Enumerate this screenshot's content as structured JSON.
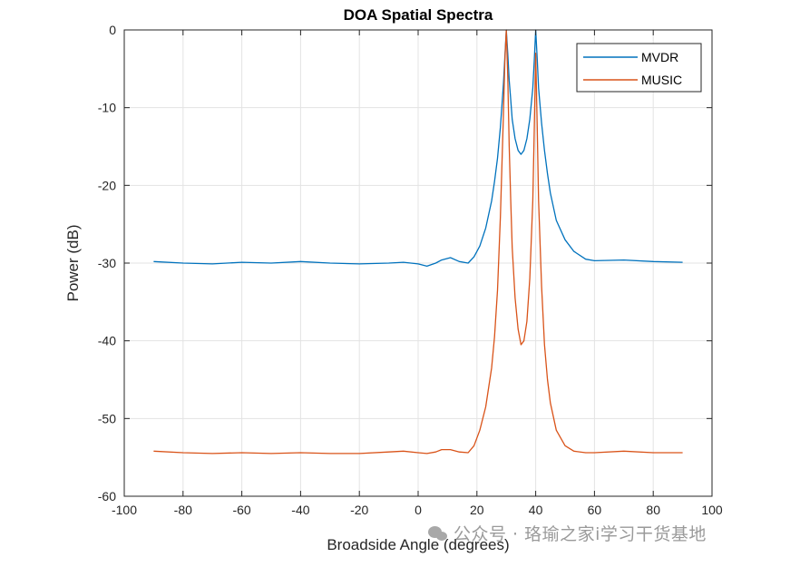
{
  "chart_data": {
    "type": "line",
    "title": "DOA Spatial Spectra",
    "xlabel": "Broadside Angle (degrees)",
    "ylabel": "Power (dB)",
    "xlim": [
      -100,
      100
    ],
    "ylim": [
      -60,
      0
    ],
    "xticks": [
      -100,
      -80,
      -60,
      -40,
      -20,
      0,
      20,
      40,
      60,
      80,
      100
    ],
    "yticks": [
      0,
      -10,
      -20,
      -30,
      -40,
      -50,
      -60
    ],
    "grid": true,
    "legend_position": "top-right",
    "series": [
      {
        "name": "MVDR",
        "color": "#0072BD",
        "x": [
          -90,
          -80,
          -70,
          -60,
          -50,
          -40,
          -30,
          -20,
          -10,
          -5,
          0,
          3,
          6,
          8,
          11,
          14,
          17,
          19,
          21,
          23,
          25,
          26,
          27,
          28,
          29,
          29.5,
          30,
          30.5,
          31,
          31.5,
          32,
          33,
          34,
          35,
          36,
          37,
          38,
          39,
          39.5,
          40,
          40.5,
          41,
          42,
          43,
          44,
          45,
          47,
          50,
          53,
          57,
          60,
          70,
          80,
          90
        ],
        "values": [
          -29.8,
          -30.0,
          -30.1,
          -29.9,
          -30.0,
          -29.8,
          -30.0,
          -30.1,
          -30.0,
          -29.9,
          -30.1,
          -30.4,
          -30.0,
          -29.6,
          -29.3,
          -29.8,
          -30.0,
          -29.2,
          -27.8,
          -25.5,
          -22.0,
          -19.5,
          -16.5,
          -12.5,
          -7.0,
          -3.5,
          0.0,
          -3.0,
          -6.5,
          -9.0,
          -11.5,
          -14.0,
          -15.5,
          -16.0,
          -15.5,
          -14.0,
          -11.5,
          -7.5,
          -4.0,
          0.0,
          -3.5,
          -7.5,
          -12.0,
          -15.5,
          -18.5,
          -21.0,
          -24.5,
          -27.0,
          -28.5,
          -29.5,
          -29.7,
          -29.6,
          -29.8,
          -29.9
        ]
      },
      {
        "name": "MUSIC",
        "color": "#D95319",
        "x": [
          -90,
          -80,
          -70,
          -60,
          -50,
          -40,
          -30,
          -20,
          -10,
          -5,
          0,
          3,
          6,
          8,
          11,
          14,
          17,
          19,
          21,
          23,
          25,
          26,
          27,
          28,
          29,
          29.5,
          30,
          30.5,
          31,
          31.5,
          32,
          33,
          34,
          35,
          36,
          37,
          38,
          39,
          39.5,
          40,
          40.5,
          41,
          42,
          43,
          44,
          45,
          47,
          50,
          53,
          57,
          60,
          70,
          80,
          90
        ],
        "values": [
          -54.2,
          -54.4,
          -54.5,
          -54.4,
          -54.5,
          -54.4,
          -54.5,
          -54.5,
          -54.3,
          -54.2,
          -54.4,
          -54.5,
          -54.3,
          -54.0,
          -54.0,
          -54.3,
          -54.4,
          -53.5,
          -51.5,
          -48.5,
          -43.5,
          -39.5,
          -33.5,
          -24.0,
          -11.0,
          -4.0,
          0.0,
          -6.0,
          -15.0,
          -22.0,
          -28.0,
          -34.5,
          -38.5,
          -40.5,
          -40.0,
          -37.5,
          -32.0,
          -22.0,
          -13.0,
          -3.0,
          -12.0,
          -22.0,
          -33.0,
          -40.5,
          -45.0,
          -48.0,
          -51.5,
          -53.5,
          -54.2,
          -54.4,
          -54.4,
          -54.2,
          -54.4,
          -54.4
        ]
      }
    ]
  },
  "watermark": {
    "text": "公众号 · 珞瑜之家i学习干货基地",
    "icon": "wechat-icon"
  }
}
